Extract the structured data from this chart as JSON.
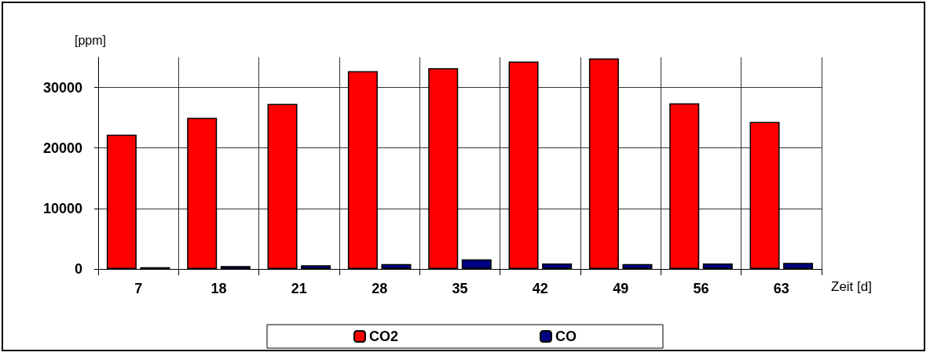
{
  "chart_data": {
    "type": "bar",
    "ylabel": "[ppm]",
    "xlabel": "Zeit [d]",
    "categories": [
      "7",
      "18",
      "21",
      "28",
      "35",
      "42",
      "49",
      "56",
      "63"
    ],
    "series": [
      {
        "name": "CO2",
        "color": "#ff0000",
        "values": [
          22200,
          25000,
          27300,
          32700,
          33200,
          34300,
          34800,
          27400,
          24300
        ]
      },
      {
        "name": "CO",
        "color": "#000080",
        "values": [
          300,
          500,
          600,
          800,
          1600,
          900,
          800,
          900,
          1000
        ]
      }
    ],
    "ylim": [
      0,
      35000
    ],
    "yticks": [
      0,
      10000,
      20000,
      30000
    ],
    "grid": true,
    "legend": "bottom"
  }
}
